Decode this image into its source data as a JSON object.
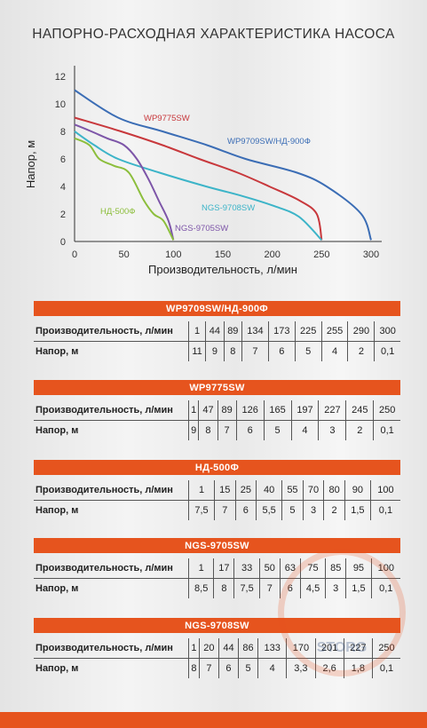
{
  "title": "НАПОРНО-РАСХОДНАЯ ХАРАКТЕРИСТИКА НАСОСА",
  "chart_data": {
    "type": "line",
    "xlabel": "Производительность, л/мин",
    "ylabel": "Напор, м",
    "xlim": [
      0,
      300
    ],
    "ylim": [
      0,
      12
    ],
    "xticks": [
      "0",
      "50",
      "100",
      "150",
      "200",
      "250",
      "300"
    ],
    "yticks": [
      "0",
      "2",
      "4",
      "6",
      "8",
      "10",
      "12"
    ],
    "grid": false,
    "series": [
      {
        "name": "WP9709SW/НД-900Ф",
        "color": "#3b6db5",
        "x": [
          0,
          44,
          89,
          134,
          173,
          225,
          255,
          290,
          300
        ],
        "y": [
          11,
          9,
          8,
          7,
          6,
          5,
          4,
          2,
          0.1
        ]
      },
      {
        "name": "WP9775SW",
        "color": "#c8383c",
        "x": [
          0,
          47,
          89,
          126,
          165,
          197,
          227,
          245,
          250
        ],
        "y": [
          9,
          8,
          7,
          6,
          5,
          4,
          3,
          2,
          0.1
        ]
      },
      {
        "name": "NGS-9708SW",
        "color": "#3cb4c8",
        "x": [
          0,
          20,
          44,
          86,
          133,
          170,
          201,
          227,
          250
        ],
        "y": [
          8,
          7,
          6,
          5,
          4,
          3.3,
          2.6,
          1.8,
          0.1
        ]
      },
      {
        "name": "NGS-9705SW",
        "color": "#7d55a8",
        "x": [
          0,
          17,
          33,
          50,
          63,
          75,
          85,
          95,
          100
        ],
        "y": [
          8.5,
          8,
          7.5,
          7,
          6,
          4.5,
          3,
          1.5,
          0.1
        ]
      },
      {
        "name": "НД-500Ф",
        "color": "#8cbe3c",
        "x": [
          0,
          15,
          25,
          40,
          55,
          70,
          80,
          90,
          100
        ],
        "y": [
          7.5,
          7,
          6,
          5.5,
          5,
          3,
          2,
          1.5,
          0.1
        ]
      }
    ]
  },
  "tables": [
    {
      "header": "WP9709SW/НД-900Ф",
      "row1_label": "Производительность, л/мин",
      "row1": [
        "1",
        "44",
        "89",
        "134",
        "173",
        "225",
        "255",
        "290",
        "300"
      ],
      "row2_label": "Напор, м",
      "row2": [
        "11",
        "9",
        "8",
        "7",
        "6",
        "5",
        "4",
        "2",
        "0,1"
      ]
    },
    {
      "header": "WP9775SW",
      "row1_label": "Производительность, л/мин",
      "row1": [
        "1",
        "47",
        "89",
        "126",
        "165",
        "197",
        "227",
        "245",
        "250"
      ],
      "row2_label": "Напор, м",
      "row2": [
        "9",
        "8",
        "7",
        "6",
        "5",
        "4",
        "3",
        "2",
        "0,1"
      ]
    },
    {
      "header": "НД-500Ф",
      "row1_label": "Производительность, л/мин",
      "row1": [
        "1",
        "15",
        "25",
        "40",
        "55",
        "70",
        "80",
        "90",
        "100"
      ],
      "row2_label": "Напор, м",
      "row2": [
        "7,5",
        "7",
        "6",
        "5,5",
        "5",
        "3",
        "2",
        "1,5",
        "0,1"
      ]
    },
    {
      "header": "NGS-9705SW",
      "row1_label": "Производительность, л/мин",
      "row1": [
        "1",
        "17",
        "33",
        "50",
        "63",
        "75",
        "85",
        "95",
        "100"
      ],
      "row2_label": "Напор, м",
      "row2": [
        "8,5",
        "8",
        "7,5",
        "7",
        "6",
        "4,5",
        "3",
        "1,5",
        "0,1"
      ]
    },
    {
      "header": "NGS-9708SW",
      "row1_label": "Производительность, л/мин",
      "row1": [
        "1",
        "20",
        "44",
        "86",
        "133",
        "170",
        "201",
        "227",
        "250"
      ],
      "row2_label": "Напор, м",
      "row2": [
        "8",
        "7",
        "6",
        "5",
        "4",
        "3,3",
        "2,6",
        "1,8",
        "0,1"
      ]
    }
  ],
  "watermark": "STORG",
  "colors": {
    "accent": "#e6541e",
    "axis": "#333333"
  }
}
